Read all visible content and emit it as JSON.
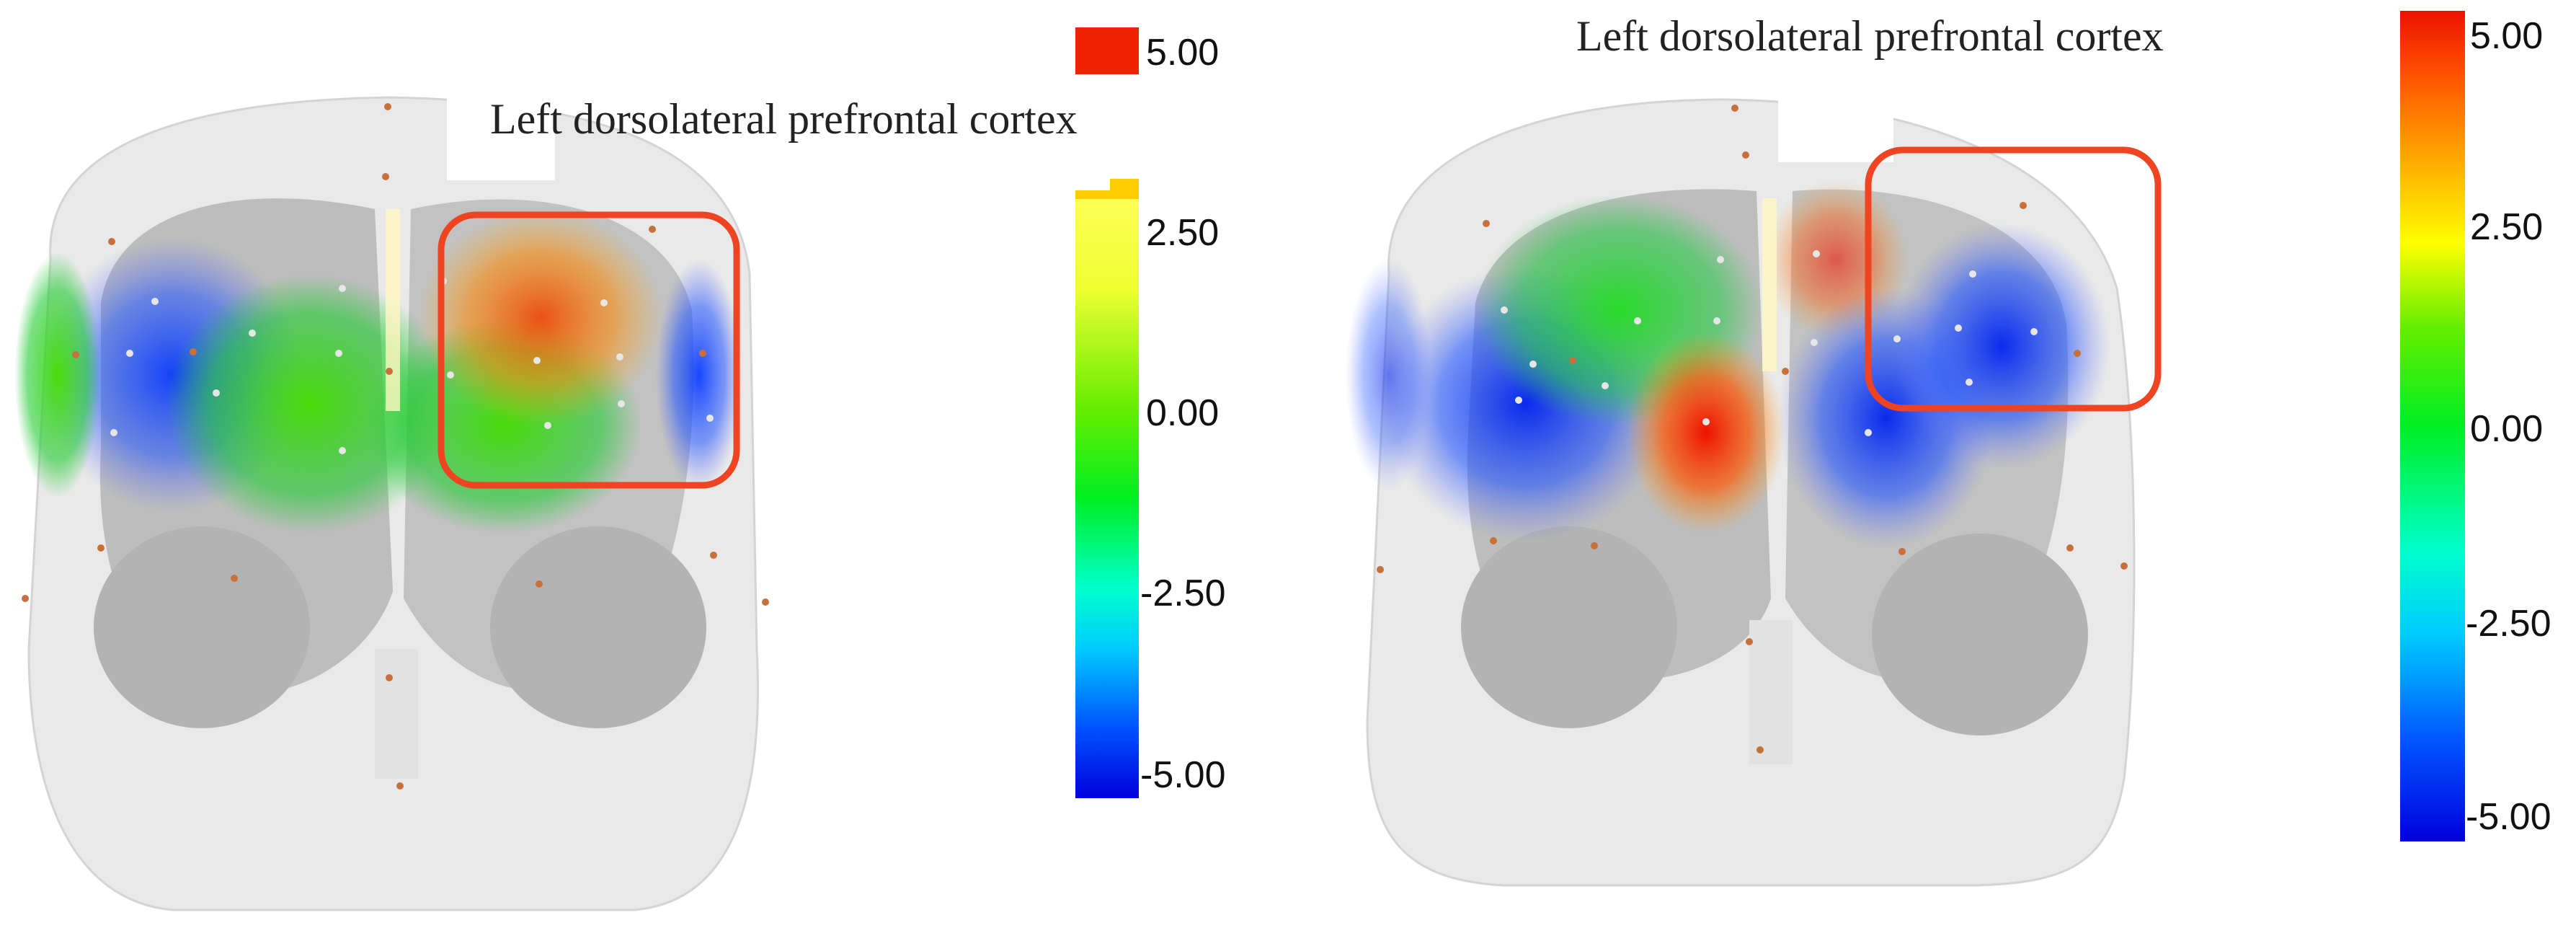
{
  "panels": [
    {
      "id": "left",
      "annotation": "Left dorsolateral prefrontal cortex",
      "colorbar": {
        "ticks": [
          "5.00",
          "2.50",
          "0.00",
          "-2.50",
          "-5.00"
        ]
      }
    },
    {
      "id": "right",
      "annotation": "Left dorsolateral prefrontal cortex",
      "colorbar": {
        "ticks": [
          "5.00",
          "2.50",
          "0.00",
          "-2.50",
          "-5.00"
        ]
      }
    }
  ],
  "colors": {
    "highlight_box": "#ee4422",
    "scalp": "#e8e8e8",
    "brain": "#bdbdbd",
    "optode_source": "#c8703a",
    "optode_detector": "#e0e0e0"
  },
  "colormap": [
    "#0000dd",
    "#0066ff",
    "#00ccff",
    "#00ffee",
    "#00ff66",
    "#33dd00",
    "#99ee00",
    "#ffff00",
    "#ffbb00",
    "#ff6600",
    "#ee2200"
  ]
}
